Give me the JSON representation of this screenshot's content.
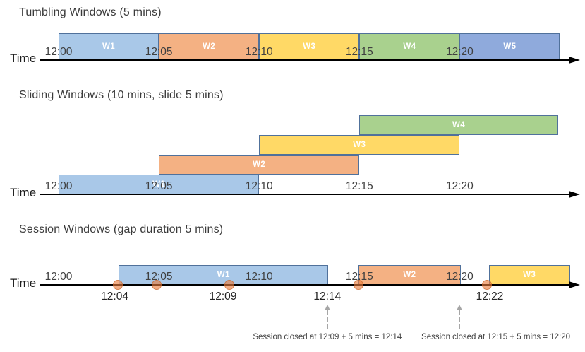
{
  "palette": {
    "blue": "#A9C8E8",
    "orange": "#F4B183",
    "yellow": "#FFD966",
    "green": "#A9D18E",
    "periwinkle": "#8FAADC",
    "window_border": "#50719B",
    "window_text": "#FFFFFF",
    "axis": "#000000",
    "tick_text": "#404040",
    "event_fill": "rgba(236,125,59,0.62)",
    "event_border": "rgba(190,95,35,0.55)",
    "dashed_arrow": "#A6A6A6",
    "annotation_text": "#404040"
  },
  "diagrams": [
    {
      "id": "tumbling",
      "title": "Tumbling Windows (5 mins)",
      "time_label": "Time",
      "ticks": [
        {
          "label": "12:00",
          "min": 0
        },
        {
          "label": "12:05",
          "min": 5
        },
        {
          "label": "12:10",
          "min": 10
        },
        {
          "label": "12:15",
          "min": 15
        },
        {
          "label": "12:20",
          "min": 20
        }
      ],
      "windows": [
        {
          "label": "W1",
          "start_min": 0,
          "end_min": 5,
          "color": "blue",
          "row": 0
        },
        {
          "label": "W2",
          "start_min": 5,
          "end_min": 10,
          "color": "orange",
          "row": 0
        },
        {
          "label": "W3",
          "start_min": 10,
          "end_min": 15,
          "color": "yellow",
          "row": 0
        },
        {
          "label": "W4",
          "start_min": 15,
          "end_min": 20,
          "color": "green",
          "row": 0
        },
        {
          "label": "W5",
          "start_min": 20,
          "end_min": 25,
          "color": "periwinkle",
          "row": 0
        }
      ]
    },
    {
      "id": "sliding",
      "title": "Sliding Windows (10 mins, slide 5 mins)",
      "time_label": "Time",
      "ticks": [
        {
          "label": "12:00",
          "min": 0
        },
        {
          "label": "12:05",
          "min": 5
        },
        {
          "label": "12:10",
          "min": 10
        },
        {
          "label": "12:15",
          "min": 15
        },
        {
          "label": "12:20",
          "min": 20
        }
      ],
      "windows": [
        {
          "label": "W1",
          "start_min": 0,
          "end_min": 10,
          "color": "blue",
          "row": 0
        },
        {
          "label": "W2",
          "start_min": 5,
          "end_min": 15,
          "color": "orange",
          "row": 1
        },
        {
          "label": "W3",
          "start_min": 10,
          "end_min": 20,
          "color": "yellow",
          "row": 2
        },
        {
          "label": "W4",
          "start_min": 15,
          "end_min": 24.9,
          "color": "green",
          "row": 3
        }
      ]
    },
    {
      "id": "session",
      "title": "Session Windows (gap duration 5 mins)",
      "time_label": "Time",
      "ticks": [
        {
          "label": "12:00",
          "min": 0
        },
        {
          "label": "12:05",
          "min": 5
        },
        {
          "label": "12:10",
          "min": 10
        },
        {
          "label": "12:15",
          "min": 15
        },
        {
          "label": "12:20",
          "min": 20
        }
      ],
      "windows": [
        {
          "label": "W1",
          "start_min": 3.0,
          "end_min": 13.45,
          "color": "blue",
          "row": 0
        },
        {
          "label": "W2",
          "start_min": 14.95,
          "end_min": 20.05,
          "color": "orange",
          "row": 0
        },
        {
          "label": "W3",
          "start_min": 21.45,
          "end_min": 25.5,
          "color": "yellow",
          "row": 0
        }
      ],
      "events": [
        {
          "min": 2.95
        },
        {
          "min": 4.9
        },
        {
          "min": 8.5
        },
        {
          "min": 14.95
        },
        {
          "min": 21.35
        }
      ],
      "event_labels": [
        {
          "label": "12:04",
          "min": 2.8
        },
        {
          "label": "12:09",
          "min": 8.2
        },
        {
          "label": "12:14",
          "min": 13.4
        },
        {
          "label": "12:22",
          "min": 21.5
        }
      ],
      "annotations": [
        {
          "text": "Session closed at 12:09 + 5 mins = 12:14",
          "arrow_min": 13.4,
          "text_min": 13.4
        },
        {
          "text": "Session closed at 12:15 + 5 mins = 12:20",
          "arrow_min": 20.0,
          "text_min": 21.8
        }
      ]
    }
  ]
}
